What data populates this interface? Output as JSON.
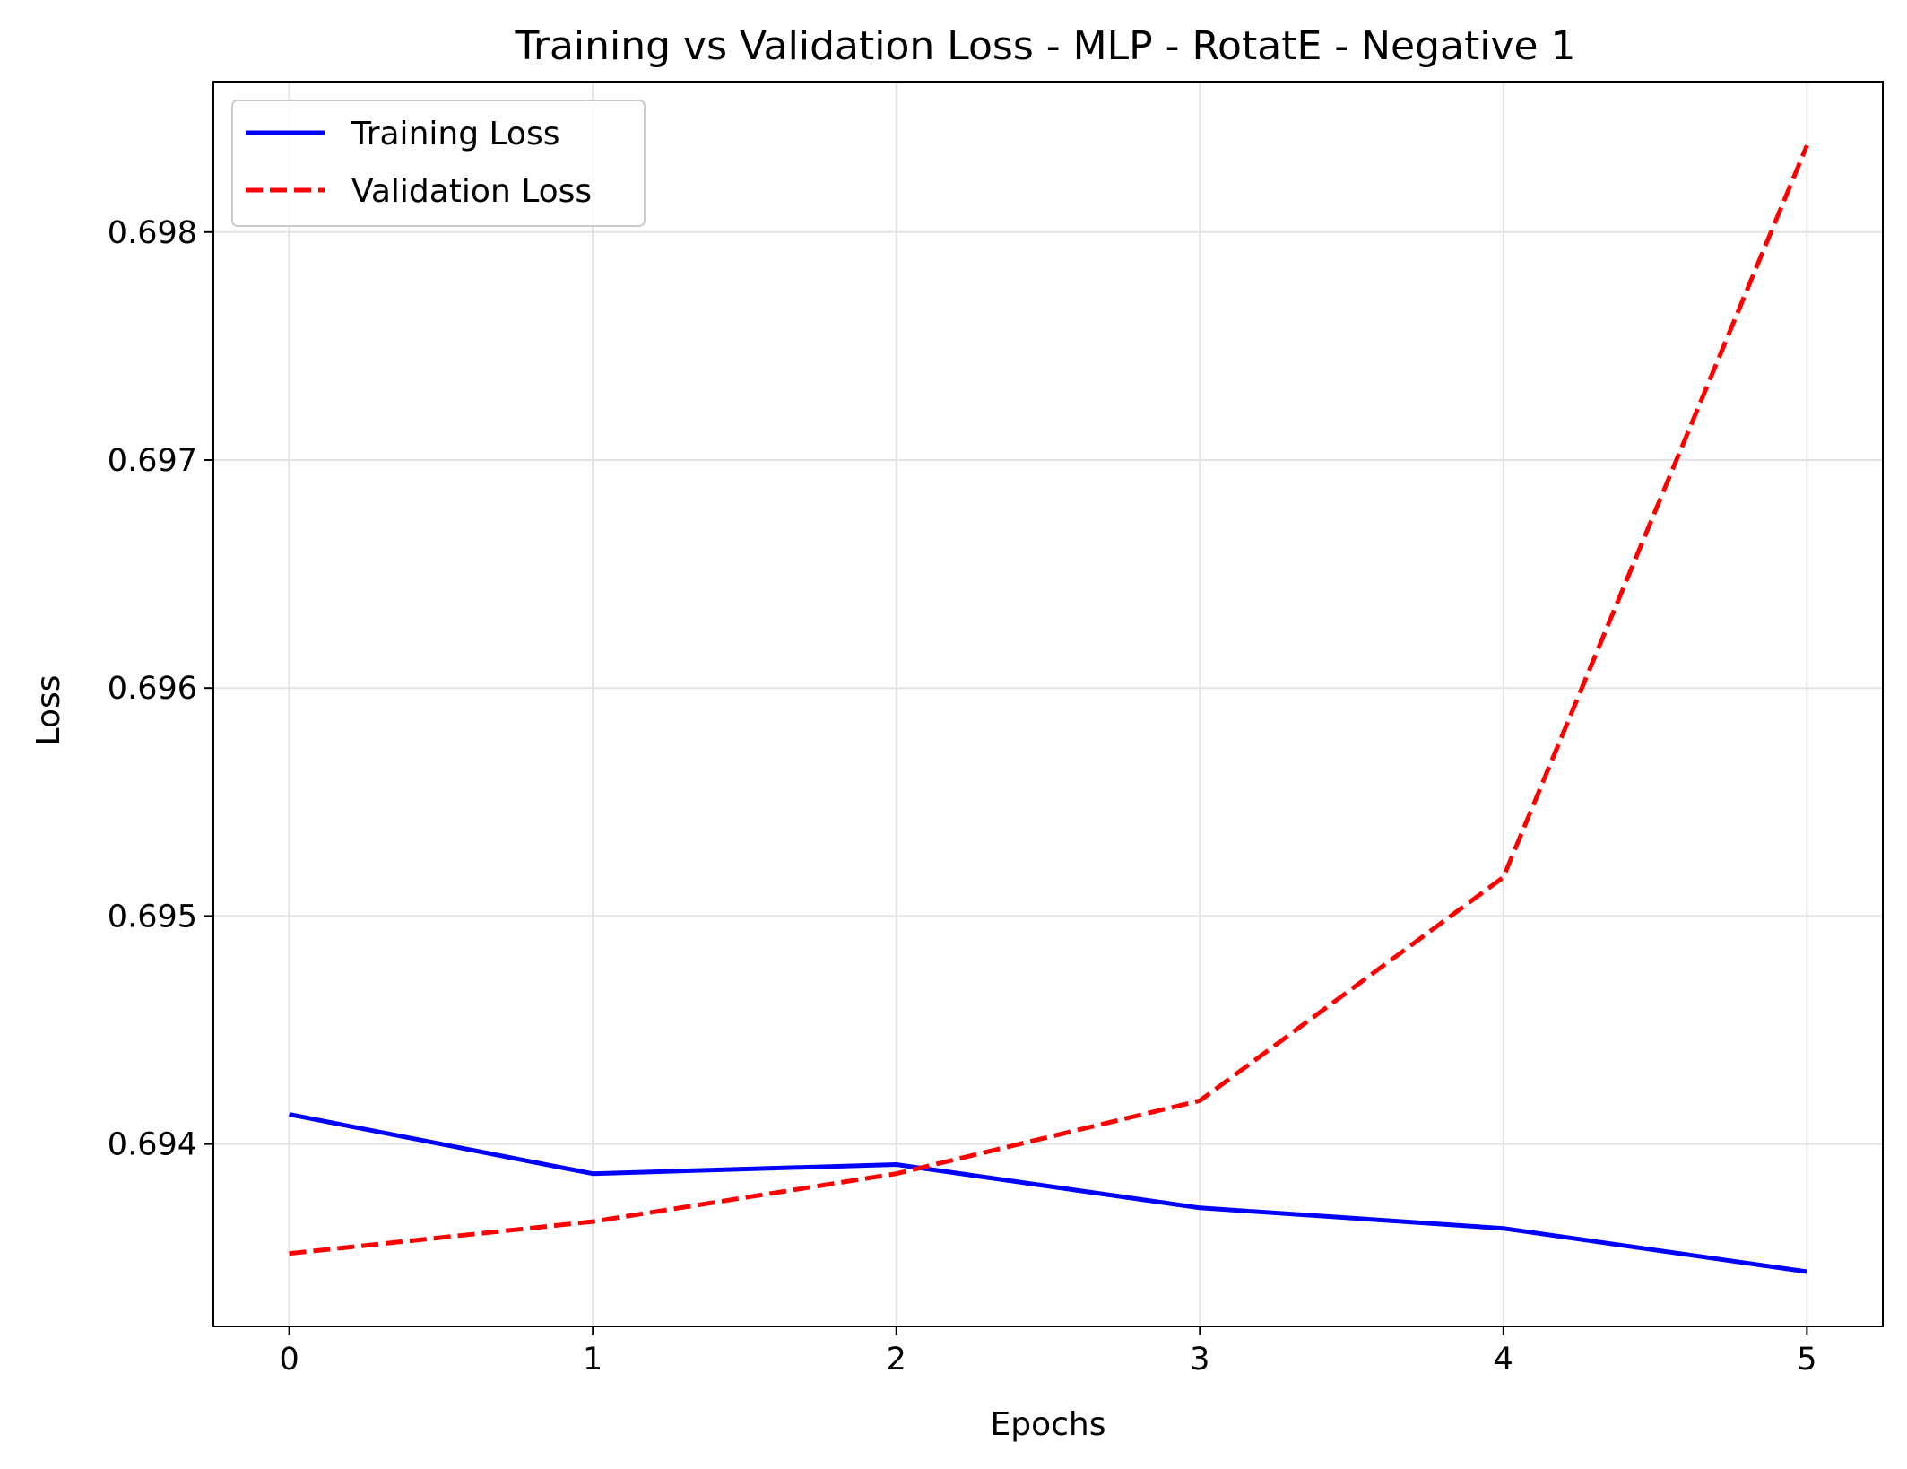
{
  "chart_data": {
    "type": "line",
    "title": "Training vs Validation Loss - MLP - RotatE - Negative 1",
    "xlabel": "Epochs",
    "ylabel": "Loss",
    "x": [
      0,
      1,
      2,
      3,
      4,
      5
    ],
    "xticks": [
      "0",
      "1",
      "2",
      "3",
      "4",
      "5"
    ],
    "yticks": [
      "0.694",
      "0.695",
      "0.696",
      "0.697",
      "0.698"
    ],
    "xlim": [
      -0.25,
      5.25
    ],
    "ylim": [
      0.6932,
      0.69866
    ],
    "grid": true,
    "legend_position": "top-left",
    "series": [
      {
        "name": "Training Loss",
        "values": [
          0.69413,
          0.69387,
          0.69391,
          0.69372,
          0.69363,
          0.69344
        ],
        "color": "#0000ff",
        "style": "solid"
      },
      {
        "name": "Validation Loss",
        "values": [
          0.69352,
          0.69366,
          0.69387,
          0.69419,
          0.69517,
          0.69838
        ],
        "color": "#ff0000",
        "style": "dashed"
      }
    ]
  }
}
